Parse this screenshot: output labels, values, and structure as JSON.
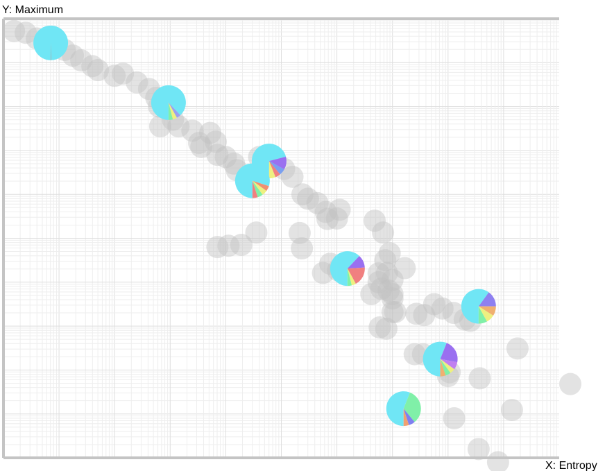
{
  "chart_data": {
    "type": "scatter",
    "title": "",
    "xlabel": "X: Entropy",
    "ylabel": "Y: Maximum",
    "xlim": [
      0,
      1
    ],
    "ylim": [
      0,
      1
    ],
    "x_scale": "log-like minor grid",
    "grid": true,
    "legend": "none",
    "point_color": "#c0c0c0",
    "point_opacity": 0.45,
    "background_points": [
      {
        "x": 0.019,
        "y": 0.972
      },
      {
        "x": 0.04,
        "y": 0.968
      },
      {
        "x": 0.06,
        "y": 0.955
      },
      {
        "x": 0.09,
        "y": 0.935
      },
      {
        "x": 0.11,
        "y": 0.929
      },
      {
        "x": 0.125,
        "y": 0.916
      },
      {
        "x": 0.14,
        "y": 0.905
      },
      {
        "x": 0.16,
        "y": 0.892
      },
      {
        "x": 0.17,
        "y": 0.883
      },
      {
        "x": 0.2,
        "y": 0.87
      },
      {
        "x": 0.215,
        "y": 0.875
      },
      {
        "x": 0.24,
        "y": 0.855
      },
      {
        "x": 0.262,
        "y": 0.84
      },
      {
        "x": 0.275,
        "y": 0.82
      },
      {
        "x": 0.28,
        "y": 0.8
      },
      {
        "x": 0.282,
        "y": 0.755
      },
      {
        "x": 0.305,
        "y": 0.77
      },
      {
        "x": 0.315,
        "y": 0.755
      },
      {
        "x": 0.34,
        "y": 0.745
      },
      {
        "x": 0.352,
        "y": 0.717
      },
      {
        "x": 0.356,
        "y": 0.708
      },
      {
        "x": 0.372,
        "y": 0.74
      },
      {
        "x": 0.382,
        "y": 0.72
      },
      {
        "x": 0.385,
        "y": 0.69
      },
      {
        "x": 0.4,
        "y": 0.685
      },
      {
        "x": 0.415,
        "y": 0.67
      },
      {
        "x": 0.42,
        "y": 0.655
      },
      {
        "x": 0.46,
        "y": 0.685
      },
      {
        "x": 0.485,
        "y": 0.68
      },
      {
        "x": 0.505,
        "y": 0.658
      },
      {
        "x": 0.52,
        "y": 0.64
      },
      {
        "x": 0.538,
        "y": 0.6
      },
      {
        "x": 0.548,
        "y": 0.59
      },
      {
        "x": 0.565,
        "y": 0.58
      },
      {
        "x": 0.58,
        "y": 0.56
      },
      {
        "x": 0.6,
        "y": 0.545
      },
      {
        "x": 0.605,
        "y": 0.565
      },
      {
        "x": 0.583,
        "y": 0.544
      },
      {
        "x": 0.385,
        "y": 0.48
      },
      {
        "x": 0.405,
        "y": 0.483
      },
      {
        "x": 0.428,
        "y": 0.485
      },
      {
        "x": 0.537,
        "y": 0.477
      },
      {
        "x": 0.533,
        "y": 0.512
      },
      {
        "x": 0.602,
        "y": 0.427
      },
      {
        "x": 0.575,
        "y": 0.421
      },
      {
        "x": 0.588,
        "y": 0.442
      },
      {
        "x": 0.668,
        "y": 0.54
      },
      {
        "x": 0.683,
        "y": 0.513
      },
      {
        "x": 0.687,
        "y": 0.45
      },
      {
        "x": 0.69,
        "y": 0.421
      },
      {
        "x": 0.695,
        "y": 0.466
      },
      {
        "x": 0.675,
        "y": 0.42
      },
      {
        "x": 0.675,
        "y": 0.4
      },
      {
        "x": 0.7,
        "y": 0.405
      },
      {
        "x": 0.722,
        "y": 0.432
      },
      {
        "x": 0.68,
        "y": 0.385
      },
      {
        "x": 0.662,
        "y": 0.373
      },
      {
        "x": 0.7,
        "y": 0.373
      },
      {
        "x": 0.693,
        "y": 0.381
      },
      {
        "x": 0.7,
        "y": 0.363
      },
      {
        "x": 0.7,
        "y": 0.332
      },
      {
        "x": 0.705,
        "y": 0.332
      },
      {
        "x": 0.743,
        "y": 0.328
      },
      {
        "x": 0.757,
        "y": 0.325
      },
      {
        "x": 0.775,
        "y": 0.35
      },
      {
        "x": 0.79,
        "y": 0.34
      },
      {
        "x": 0.81,
        "y": 0.33
      },
      {
        "x": 0.84,
        "y": 0.312
      },
      {
        "x": 0.83,
        "y": 0.315
      },
      {
        "x": 0.677,
        "y": 0.297
      },
      {
        "x": 0.689,
        "y": 0.294
      },
      {
        "x": 0.74,
        "y": 0.236
      },
      {
        "x": 0.755,
        "y": 0.236
      },
      {
        "x": 0.8,
        "y": 0.186
      },
      {
        "x": 0.803,
        "y": 0.195
      },
      {
        "x": 0.857,
        "y": 0.181
      },
      {
        "x": 0.925,
        "y": 0.249
      },
      {
        "x": 1.02,
        "y": 0.168
      },
      {
        "x": 0.915,
        "y": 0.109
      },
      {
        "x": 0.811,
        "y": 0.09
      },
      {
        "x": 0.855,
        "y": 0.02
      },
      {
        "x": 0.89,
        "y": -0.01
      },
      {
        "x": 0.455,
        "y": 0.513
      }
    ],
    "pie_points": [
      {
        "x": 0.085,
        "y": 0.945,
        "slices": [
          {
            "color": "#70e6f5",
            "value": 0.995
          },
          {
            "color": "#9a9a9a",
            "value": 0.005
          }
        ]
      },
      {
        "x": 0.297,
        "y": 0.809,
        "slices": [
          {
            "color": "#70e6f5",
            "value": 0.88
          },
          {
            "color": "#9aa0f0",
            "value": 0.04
          },
          {
            "color": "#eef080",
            "value": 0.04
          },
          {
            "color": "#80f0a8",
            "value": 0.04
          }
        ]
      },
      {
        "x": 0.478,
        "y": 0.676,
        "slices": [
          {
            "color": "#70e6f5",
            "value": 0.71
          },
          {
            "color": "#9a70f0",
            "value": 0.12
          },
          {
            "color": "#7aa0f0",
            "value": 0.06
          },
          {
            "color": "#f08080",
            "value": 0.05
          },
          {
            "color": "#eef080",
            "value": 0.06
          }
        ]
      },
      {
        "x": 0.448,
        "y": 0.631,
        "slices": [
          {
            "color": "#70e6f5",
            "value": 0.8
          },
          {
            "color": "#f09070",
            "value": 0.05
          },
          {
            "color": "#eef080",
            "value": 0.05
          },
          {
            "color": "#80f0a8",
            "value": 0.05
          },
          {
            "color": "#f08080",
            "value": 0.05
          }
        ]
      },
      {
        "x": 0.619,
        "y": 0.431,
        "slices": [
          {
            "color": "#70e6f5",
            "value": 0.62
          },
          {
            "color": "#9a70f0",
            "value": 0.12
          },
          {
            "color": "#f08080",
            "value": 0.18
          },
          {
            "color": "#eef080",
            "value": 0.04
          },
          {
            "color": "#80f0a8",
            "value": 0.04
          }
        ]
      },
      {
        "x": 0.855,
        "y": 0.345,
        "slices": [
          {
            "color": "#70e6f5",
            "value": 0.6
          },
          {
            "color": "#8e80f0",
            "value": 0.15
          },
          {
            "color": "#f0b070",
            "value": 0.09
          },
          {
            "color": "#eef080",
            "value": 0.08
          },
          {
            "color": "#80f0a8",
            "value": 0.08
          }
        ]
      },
      {
        "x": 0.786,
        "y": 0.225,
        "slices": [
          {
            "color": "#70e6f5",
            "value": 0.56
          },
          {
            "color": "#9a70f0",
            "value": 0.22
          },
          {
            "color": "#c080f0",
            "value": 0.07
          },
          {
            "color": "#eef080",
            "value": 0.05
          },
          {
            "color": "#80f0a8",
            "value": 0.05
          },
          {
            "color": "#f0b070",
            "value": 0.05
          }
        ]
      },
      {
        "x": 0.72,
        "y": 0.112,
        "slices": [
          {
            "color": "#70e6f5",
            "value": 0.56
          },
          {
            "color": "#80f0a8",
            "value": 0.33
          },
          {
            "color": "#8080f0",
            "value": 0.06
          },
          {
            "color": "#f0a070",
            "value": 0.05
          }
        ]
      }
    ]
  }
}
